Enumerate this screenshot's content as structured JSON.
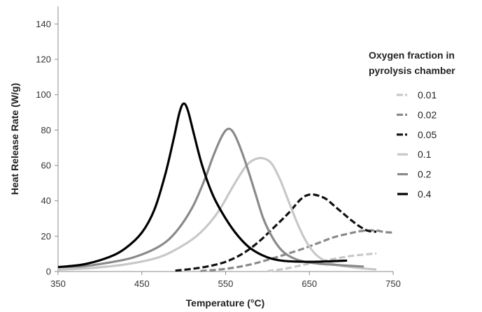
{
  "chart_data": {
    "type": "line",
    "title": "",
    "xlabel": "Temperature (°C)",
    "ylabel": "Heat Release Rate (W/g)",
    "xlim": [
      350,
      750
    ],
    "ylim": [
      0,
      150
    ],
    "xticks": [
      350,
      450,
      550,
      650,
      750
    ],
    "yticks": [
      0,
      20,
      40,
      60,
      80,
      100,
      120,
      140
    ],
    "grid": false,
    "legend": {
      "title_line1": "Oxygen fraction in",
      "title_line2": "pyrolysis chamber",
      "placement": "right"
    },
    "series": [
      {
        "name": "0.01",
        "color": "#c8c8c8",
        "dashed": true,
        "points": [
          [
            600,
            0.2
          ],
          [
            620,
            1.5
          ],
          [
            640,
            3.5
          ],
          [
            660,
            5.5
          ],
          [
            680,
            7.2
          ],
          [
            700,
            8.8
          ],
          [
            720,
            9.8
          ],
          [
            730,
            10.2
          ]
        ]
      },
      {
        "name": "0.02",
        "color": "#8a8a8a",
        "dashed": true,
        "points": [
          [
            520,
            0.3
          ],
          [
            550,
            1.5
          ],
          [
            580,
            4
          ],
          [
            610,
            8
          ],
          [
            640,
            12.5
          ],
          [
            660,
            16
          ],
          [
            680,
            19.5
          ],
          [
            700,
            21.8
          ],
          [
            710,
            22.8
          ],
          [
            720,
            23.2
          ],
          [
            730,
            23.2
          ],
          [
            740,
            22.3
          ],
          [
            750,
            22
          ]
        ]
      },
      {
        "name": "0.05",
        "color": "#111111",
        "dashed": true,
        "points": [
          [
            490,
            0.5
          ],
          [
            510,
            1.5
          ],
          [
            530,
            3
          ],
          [
            550,
            5.5
          ],
          [
            570,
            10
          ],
          [
            590,
            17
          ],
          [
            610,
            26
          ],
          [
            625,
            33
          ],
          [
            640,
            41
          ],
          [
            650,
            43.5
          ],
          [
            660,
            43
          ],
          [
            670,
            41
          ],
          [
            680,
            37
          ],
          [
            690,
            33
          ],
          [
            700,
            29
          ],
          [
            710,
            25.5
          ],
          [
            720,
            23
          ],
          [
            730,
            22.5
          ]
        ]
      },
      {
        "name": "0.1",
        "color": "#c8c8c8",
        "dashed": false,
        "points": [
          [
            350,
            1
          ],
          [
            390,
            2
          ],
          [
            430,
            4
          ],
          [
            470,
            8
          ],
          [
            500,
            15
          ],
          [
            520,
            22
          ],
          [
            540,
            33
          ],
          [
            555,
            45
          ],
          [
            565,
            53
          ],
          [
            575,
            60
          ],
          [
            585,
            63.5
          ],
          [
            595,
            64
          ],
          [
            605,
            61
          ],
          [
            615,
            52
          ],
          [
            625,
            40
          ],
          [
            635,
            28
          ],
          [
            645,
            18
          ],
          [
            655,
            11
          ],
          [
            665,
            7
          ],
          [
            680,
            4
          ],
          [
            700,
            2.5
          ],
          [
            720,
            1.5
          ],
          [
            730,
            1.2
          ]
        ]
      },
      {
        "name": "0.2",
        "color": "#8a8a8a",
        "dashed": false,
        "points": [
          [
            350,
            2.5
          ],
          [
            380,
            3
          ],
          [
            410,
            5
          ],
          [
            440,
            8
          ],
          [
            470,
            14
          ],
          [
            490,
            22
          ],
          [
            510,
            36
          ],
          [
            525,
            52
          ],
          [
            535,
            65
          ],
          [
            545,
            76
          ],
          [
            552,
            80.5
          ],
          [
            558,
            79.5
          ],
          [
            565,
            73
          ],
          [
            575,
            60
          ],
          [
            585,
            45
          ],
          [
            595,
            30
          ],
          [
            605,
            20
          ],
          [
            615,
            13
          ],
          [
            625,
            9
          ],
          [
            640,
            6
          ],
          [
            660,
            4.5
          ],
          [
            680,
            3.8
          ],
          [
            700,
            3.2
          ],
          [
            715,
            2.8
          ]
        ]
      },
      {
        "name": "0.4",
        "color": "#000000",
        "dashed": false,
        "points": [
          [
            350,
            2.5
          ],
          [
            380,
            4
          ],
          [
            410,
            8
          ],
          [
            430,
            13
          ],
          [
            450,
            22
          ],
          [
            465,
            35
          ],
          [
            478,
            55
          ],
          [
            488,
            75
          ],
          [
            495,
            90
          ],
          [
            500,
            95
          ],
          [
            505,
            91
          ],
          [
            512,
            78
          ],
          [
            522,
            60
          ],
          [
            535,
            43
          ],
          [
            550,
            30
          ],
          [
            565,
            20
          ],
          [
            580,
            13
          ],
          [
            600,
            8
          ],
          [
            620,
            6
          ],
          [
            650,
            5.5
          ],
          [
            675,
            5.8
          ],
          [
            695,
            6.2
          ]
        ]
      }
    ]
  }
}
